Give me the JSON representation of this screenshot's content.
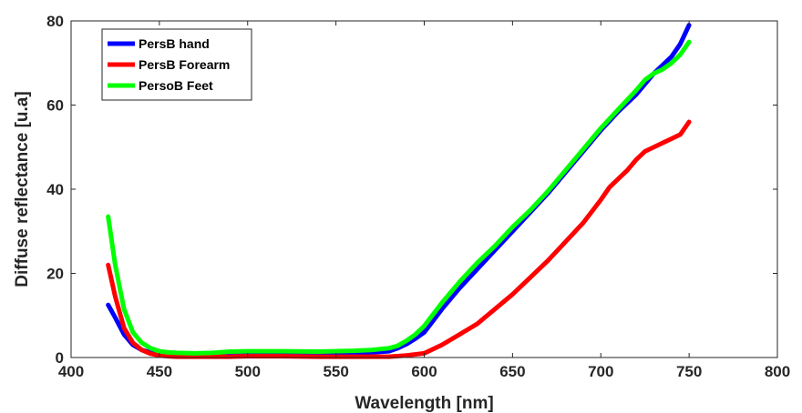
{
  "chart_data": {
    "type": "line",
    "title": "",
    "xlabel": "Wavelength [nm]",
    "ylabel": "Diffuse reflectance [u.a]",
    "xlim": [
      400,
      800
    ],
    "ylim": [
      0,
      80
    ],
    "x_ticks": [
      "400",
      "450",
      "500",
      "550",
      "600",
      "650",
      "700",
      "750",
      "800"
    ],
    "y_ticks": [
      "0",
      "20",
      "40",
      "60",
      "80"
    ],
    "grid": false,
    "legend_position": "top-left",
    "series": [
      {
        "name": "PersB hand",
        "color": "#0000ff",
        "x": [
          421,
          425,
          430,
          435,
          440,
          445,
          450,
          455,
          460,
          470,
          480,
          490,
          500,
          505,
          510,
          520,
          530,
          540,
          550,
          560,
          570,
          580,
          585,
          590,
          595,
          600,
          610,
          620,
          630,
          640,
          650,
          660,
          670,
          680,
          690,
          700,
          710,
          720,
          725,
          730,
          735,
          740,
          745,
          750
        ],
        "y": [
          12.5,
          9.5,
          5.5,
          3.0,
          1.8,
          1.2,
          0.9,
          0.8,
          0.7,
          0.7,
          0.8,
          1.0,
          1.1,
          1.2,
          1.1,
          1.0,
          1.0,
          1.0,
          1.0,
          1.1,
          1.2,
          1.5,
          2.2,
          3.2,
          4.5,
          6.0,
          11.5,
          16.5,
          21.0,
          25.5,
          30.0,
          34.5,
          39.0,
          44.0,
          49.0,
          54.0,
          58.5,
          62.5,
          65.0,
          67.5,
          69.5,
          71.5,
          74.5,
          79.0
        ]
      },
      {
        "name": "PersB Forearm",
        "color": "#ff0000",
        "x": [
          421,
          425,
          430,
          435,
          440,
          445,
          450,
          455,
          460,
          470,
          480,
          490,
          500,
          520,
          540,
          560,
          580,
          590,
          600,
          610,
          620,
          630,
          640,
          650,
          660,
          670,
          680,
          690,
          700,
          705,
          710,
          715,
          720,
          725,
          730,
          735,
          740,
          745,
          750
        ],
        "y": [
          22.0,
          14.5,
          7.0,
          3.5,
          1.8,
          0.9,
          0.5,
          0.3,
          0.2,
          0.2,
          0.2,
          0.2,
          0.3,
          0.3,
          0.2,
          0.2,
          0.2,
          0.5,
          1.0,
          3.0,
          5.5,
          8.0,
          11.5,
          15.0,
          19.0,
          23.0,
          27.5,
          32.0,
          37.5,
          40.5,
          42.5,
          44.5,
          47.0,
          49.0,
          50.0,
          51.0,
          52.0,
          53.0,
          56.0
        ]
      },
      {
        "name": "PersoB Feet",
        "color": "#00ff00",
        "x": [
          421,
          425,
          430,
          435,
          440,
          445,
          450,
          455,
          460,
          470,
          480,
          490,
          500,
          510,
          520,
          540,
          560,
          570,
          580,
          585,
          590,
          595,
          600,
          610,
          620,
          630,
          640,
          650,
          660,
          670,
          680,
          690,
          700,
          710,
          720,
          725,
          730,
          735,
          740,
          745,
          750
        ],
        "y": [
          33.5,
          22.0,
          11.5,
          6.0,
          3.5,
          2.2,
          1.5,
          1.2,
          1.1,
          1.0,
          1.1,
          1.4,
          1.5,
          1.5,
          1.5,
          1.4,
          1.6,
          1.8,
          2.2,
          2.8,
          4.0,
          5.5,
          7.5,
          13.0,
          18.0,
          22.5,
          26.5,
          31.0,
          35.0,
          39.5,
          44.5,
          49.5,
          54.5,
          59.0,
          63.5,
          66.0,
          67.5,
          68.5,
          70.0,
          72.0,
          75.0
        ]
      }
    ]
  }
}
